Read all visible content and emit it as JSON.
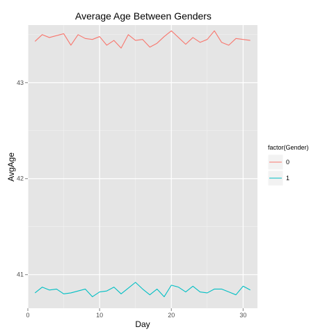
{
  "chart_data": {
    "type": "line",
    "title": "Average Age Between Genders",
    "xlabel": "Day",
    "ylabel": "AvgAge",
    "xlim": [
      0,
      32
    ],
    "ylim": [
      40.65,
      43.6
    ],
    "x_ticks": [
      0,
      10,
      20,
      30
    ],
    "y_ticks": [
      41,
      42,
      43
    ],
    "grid": true,
    "legend": {
      "title": "factor(Gender)",
      "placement": "right"
    },
    "x": [
      1,
      2,
      3,
      4,
      5,
      6,
      7,
      8,
      9,
      10,
      11,
      12,
      13,
      14,
      15,
      16,
      17,
      18,
      19,
      20,
      21,
      22,
      23,
      24,
      25,
      26,
      27,
      28,
      29,
      30,
      31
    ],
    "series": [
      {
        "name": "0",
        "color": "#F8766D",
        "values": [
          43.43,
          43.5,
          43.47,
          43.49,
          43.51,
          43.39,
          43.5,
          43.46,
          43.45,
          43.48,
          43.39,
          43.44,
          43.36,
          43.5,
          43.44,
          43.45,
          43.37,
          43.41,
          43.48,
          43.54,
          43.47,
          43.4,
          43.47,
          43.42,
          43.45,
          43.54,
          43.42,
          43.39,
          43.46,
          43.45,
          43.44
        ]
      },
      {
        "name": "1",
        "color": "#00BFC4",
        "values": [
          40.81,
          40.87,
          40.84,
          40.85,
          40.8,
          40.81,
          40.83,
          40.85,
          40.77,
          40.82,
          40.83,
          40.87,
          40.8,
          40.86,
          40.92,
          40.85,
          40.79,
          40.85,
          40.77,
          40.89,
          40.87,
          40.82,
          40.88,
          40.82,
          40.81,
          40.85,
          40.85,
          40.82,
          40.79,
          40.88,
          40.84
        ]
      }
    ]
  }
}
